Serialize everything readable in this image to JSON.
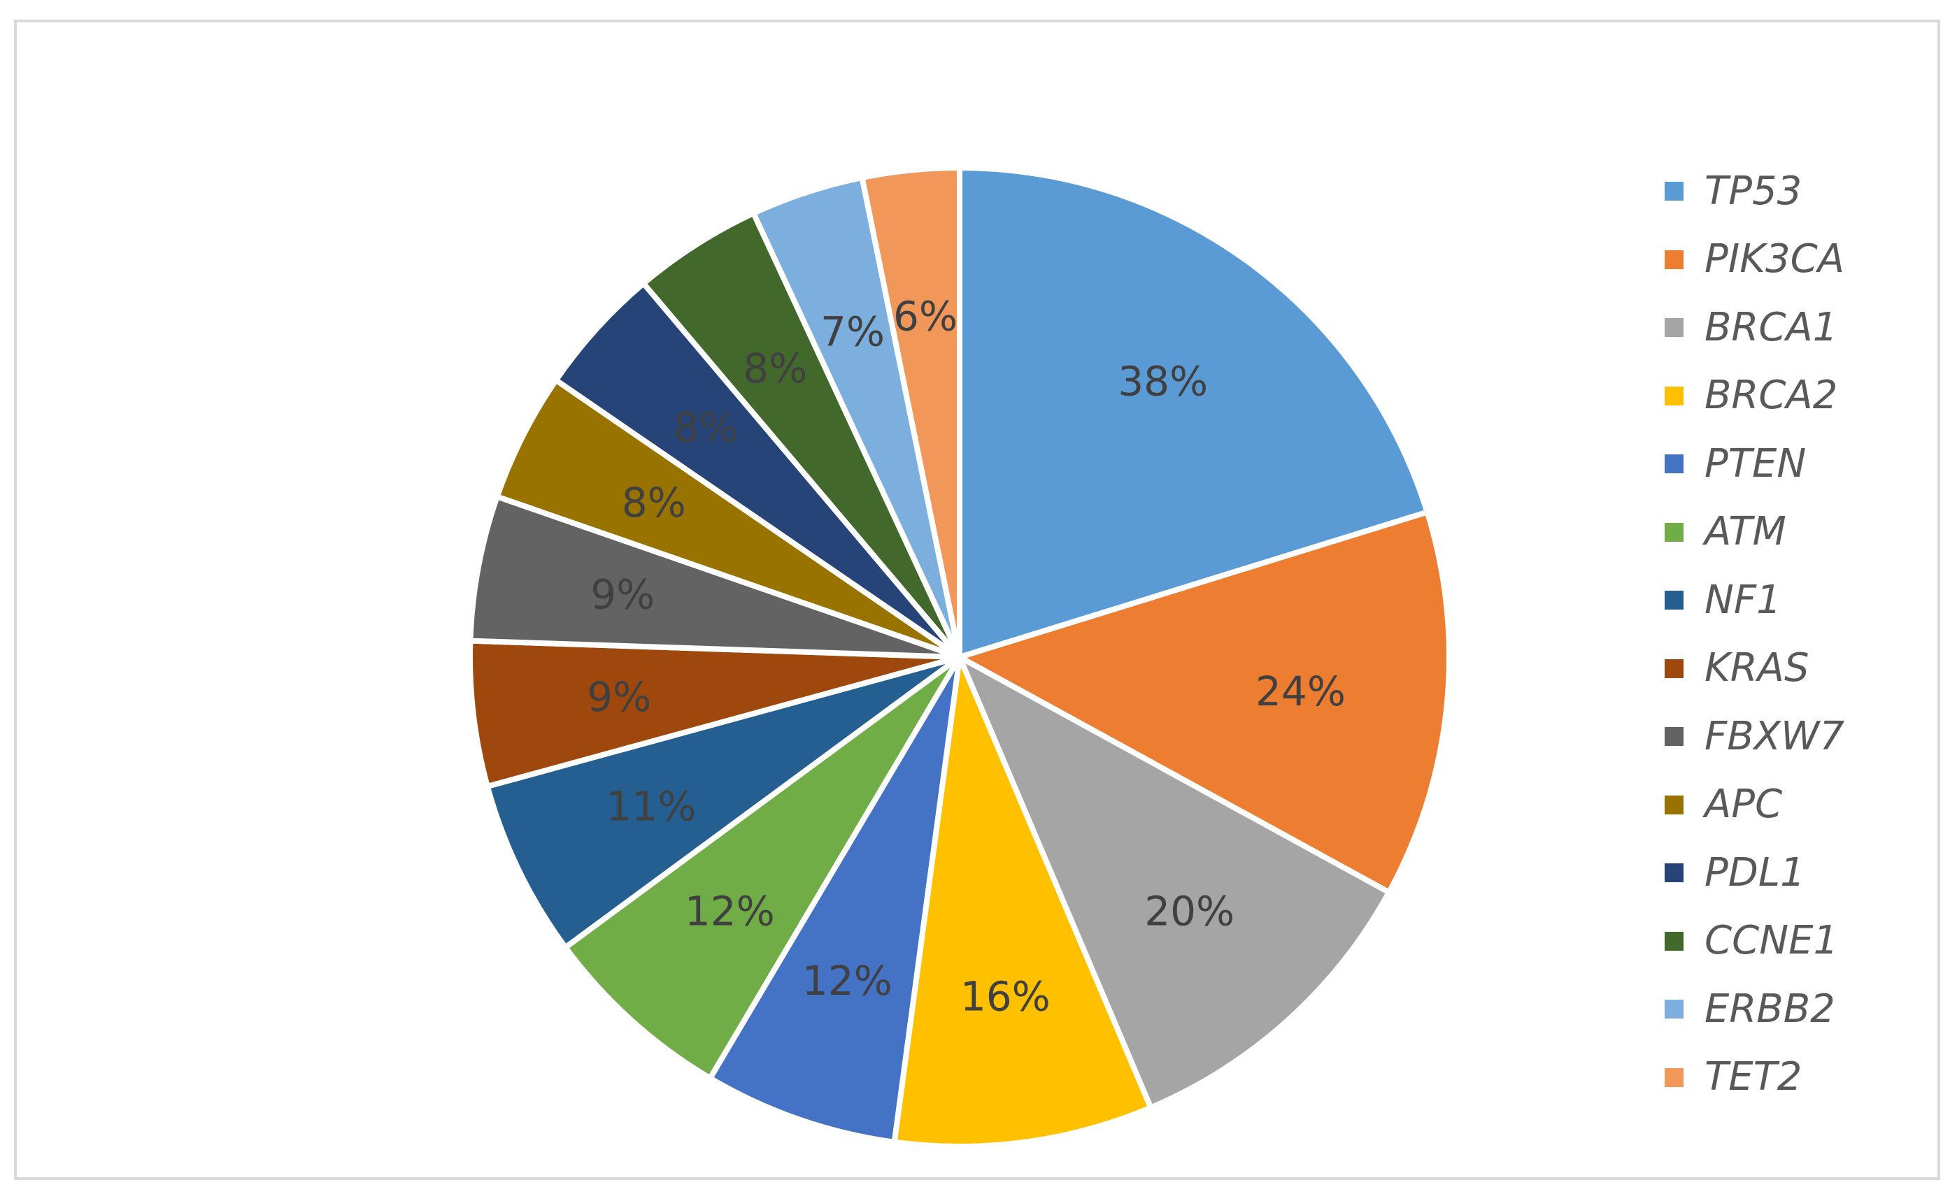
{
  "chart_data": {
    "type": "pie",
    "title": "",
    "legend_position": "right",
    "slices": [
      {
        "name": "TP53",
        "label": "38%",
        "value": 38,
        "color": "#5B9BD5"
      },
      {
        "name": "PIK3CA",
        "label": "24%",
        "value": 24,
        "color": "#ED7D31"
      },
      {
        "name": "BRCA1",
        "label": "20%",
        "value": 20,
        "color": "#A5A5A5"
      },
      {
        "name": "BRCA2",
        "label": "16%",
        "value": 16,
        "color": "#FFC000"
      },
      {
        "name": "PTEN",
        "label": "12%",
        "value": 12,
        "color": "#4472C4"
      },
      {
        "name": "ATM",
        "label": "12%",
        "value": 12,
        "color": "#70AD47"
      },
      {
        "name": "NF1",
        "label": "11%",
        "value": 11,
        "color": "#255E91"
      },
      {
        "name": "KRAS",
        "label": "9%",
        "value": 9,
        "color": "#9E480E"
      },
      {
        "name": "FBXW7",
        "label": "9%",
        "value": 9,
        "color": "#636363"
      },
      {
        "name": "APC",
        "label": "8%",
        "value": 8,
        "color": "#997300"
      },
      {
        "name": "PDL1",
        "label": "8%",
        "value": 8,
        "color": "#264478"
      },
      {
        "name": "CCNE1",
        "label": "8%",
        "value": 8,
        "color": "#43682B"
      },
      {
        "name": "ERBB2",
        "label": "7%",
        "value": 7,
        "color": "#7CAFDD"
      },
      {
        "name": "TET2",
        "label": "6%",
        "value": 6,
        "color": "#F1975A"
      }
    ]
  }
}
